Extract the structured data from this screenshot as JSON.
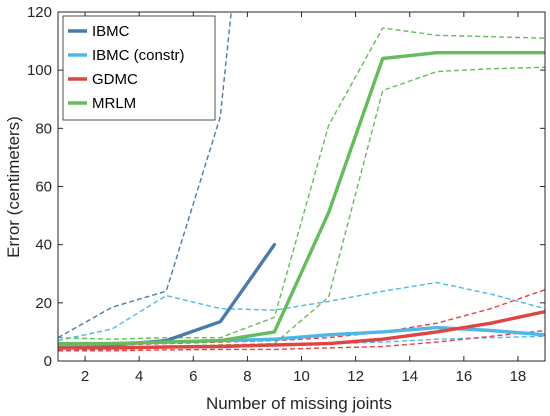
{
  "chart_data": {
    "type": "line",
    "xlabel": "Number of missing joints",
    "ylabel": "Error (centimeters)",
    "xlim": [
      1,
      19
    ],
    "ylim": [
      0,
      120
    ],
    "xticks": [
      2,
      4,
      6,
      8,
      10,
      12,
      14,
      16,
      18
    ],
    "yticks": [
      0,
      20,
      40,
      60,
      80,
      100,
      120
    ],
    "grid": false,
    "legend_position": "top-left",
    "series": [
      {
        "name": "IBMC",
        "color": "#4a7ba8",
        "x": [
          1,
          3,
          5,
          7,
          9
        ],
        "y": [
          4.5,
          5.5,
          7,
          13.5,
          40
        ],
        "upper": {
          "x": [
            1,
            3,
            5,
            7,
            7.4
          ],
          "y": [
            8,
            18.5,
            24,
            84,
            120
          ]
        },
        "lower": {
          "x": [
            1,
            3,
            5,
            7
          ],
          "y": [
            3.5,
            4,
            4.5,
            5
          ]
        }
      },
      {
        "name": "IBMC (constr)",
        "color": "#4db8e8",
        "x": [
          1,
          3,
          5,
          7,
          9,
          11,
          13,
          15,
          17,
          19
        ],
        "y": [
          5.5,
          6,
          6.5,
          7,
          7.5,
          9,
          10,
          11.5,
          10.5,
          9
        ],
        "upper": {
          "x": [
            1,
            3,
            5,
            7,
            9,
            11,
            13,
            15,
            17,
            19
          ],
          "y": [
            7,
            11,
            22.5,
            18,
            17.5,
            20.5,
            24,
            27,
            23,
            18
          ]
        },
        "lower": {
          "x": [
            1,
            3,
            5,
            7,
            9,
            11,
            13,
            15,
            17,
            19
          ],
          "y": [
            4.5,
            5,
            5,
            5.5,
            5.5,
            6,
            6.5,
            7.5,
            8,
            8.5
          ]
        }
      },
      {
        "name": "GDMC",
        "color": "#e04545",
        "x": [
          1,
          3,
          5,
          7,
          9,
          11,
          13,
          15,
          17,
          19
        ],
        "y": [
          4.5,
          4.5,
          4.8,
          5,
          5.5,
          6,
          7.5,
          10,
          13,
          17
        ],
        "upper": {
          "x": [
            1,
            3,
            5,
            7,
            9,
            11,
            13,
            15,
            17,
            19
          ],
          "y": [
            5.5,
            5.5,
            6,
            6.5,
            7,
            8,
            10,
            13,
            18,
            24.5
          ]
        },
        "lower": {
          "x": [
            1,
            3,
            5,
            7,
            9,
            11,
            13,
            15,
            17,
            19
          ],
          "y": [
            3.5,
            3.5,
            3.8,
            4,
            4,
            4.5,
            5,
            6.5,
            8.5,
            10.5
          ]
        }
      },
      {
        "name": "MRLM",
        "color": "#66bb5c",
        "x": [
          1,
          3,
          5,
          7,
          9,
          11,
          13,
          15,
          17,
          19
        ],
        "y": [
          6,
          6,
          6.5,
          7,
          10,
          51,
          104,
          106,
          106,
          106
        ],
        "upper": {
          "x": [
            1,
            3,
            5,
            7,
            9,
            11,
            13,
            15,
            17,
            19
          ],
          "y": [
            8,
            7.5,
            8,
            8,
            15,
            81,
            114.5,
            112,
            111.5,
            111
          ]
        },
        "lower": {
          "x": [
            1,
            3,
            5,
            7,
            9,
            11,
            13,
            15,
            17,
            19
          ],
          "y": [
            4,
            4.5,
            5,
            5.5,
            6,
            22,
            93,
            99.5,
            100.5,
            101
          ]
        }
      }
    ]
  }
}
